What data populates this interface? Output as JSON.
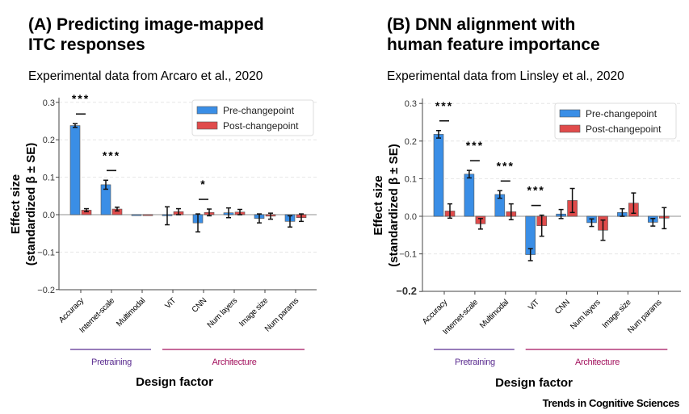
{
  "footer": "Trends in Cognitive Sciences",
  "colors": {
    "pre": "#3a8ee6",
    "post": "#e04b4b",
    "pretraining_group": "#5b2d90",
    "architecture_group": "#a3125e"
  },
  "chart_data": [
    {
      "type": "bar",
      "panel": "A",
      "title": "(A) Predicting image-mapped ITC responses",
      "title_lines": [
        "(A) Predicting image-mapped",
        "ITC responses"
      ],
      "subtitle": "Experimental data from Arcaro et al., 2020",
      "xlabel": "Design factor",
      "ylabel": "Effect size",
      "ylabel2": "(standardized β ± SE)",
      "ylim": [
        -0.2,
        0.3
      ],
      "yticks": [
        -0.2,
        -0.1,
        0.0,
        0.1,
        0.2,
        0.3
      ],
      "ytick_labels": [
        "−0.2",
        "−0.1",
        "0.0",
        "0.1",
        "0.2",
        "0.3"
      ],
      "grid": true,
      "legend_position": "top-right",
      "categories": [
        "Accuracy",
        "Internet-scale",
        "Multimodal",
        "ViT",
        "CNN",
        "Num layers",
        "Image size",
        "Num params"
      ],
      "groups": [
        {
          "label": "Pretraining",
          "start": 0,
          "end": 2
        },
        {
          "label": "Architecture",
          "start": 3,
          "end": 7
        }
      ],
      "series": [
        {
          "name": "Pre-changepoint",
          "values": [
            0.238,
            0.08,
            0.0,
            -0.003,
            -0.022,
            0.005,
            -0.01,
            -0.018
          ],
          "errors": [
            0.005,
            0.012,
            0.0,
            0.024,
            0.024,
            0.013,
            0.012,
            0.015
          ]
        },
        {
          "name": "Post-changepoint",
          "values": [
            0.012,
            0.015,
            0.0,
            0.008,
            0.006,
            0.007,
            -0.004,
            -0.008
          ],
          "errors": [
            0.004,
            0.005,
            0.0,
            0.008,
            0.009,
            0.007,
            0.008,
            0.01
          ]
        }
      ],
      "significance": [
        {
          "category": 0,
          "label": "***"
        },
        {
          "category": 1,
          "label": "***"
        },
        {
          "category": 4,
          "label": "*"
        }
      ]
    },
    {
      "type": "bar",
      "panel": "B",
      "title": "(B) DNN alignment with human feature importance",
      "title_lines": [
        "(B) DNN alignment with",
        "human feature importance"
      ],
      "subtitle": "Experimental data from Linsley et al., 2020",
      "xlabel": "Design factor",
      "ylabel": "Effect size",
      "ylabel2": "(standardized β ± SE)",
      "ylim": [
        -0.2,
        0.3
      ],
      "yticks": [
        -0.2,
        -0.1,
        0.0,
        0.1,
        0.2,
        0.3
      ],
      "ytick_labels": [
        "−0.2",
        "−0.1",
        "0.0",
        "0.1",
        "0.2",
        "0.3"
      ],
      "grid": true,
      "legend_position": "top-right",
      "categories": [
        "Accuracy",
        "Internet-scale",
        "Multimodal",
        "ViT",
        "CNN",
        "Num layers",
        "Image size",
        "Num params"
      ],
      "groups": [
        {
          "label": "Pretraining",
          "start": 0,
          "end": 2
        },
        {
          "label": "Architecture",
          "start": 3,
          "end": 7
        }
      ],
      "series": [
        {
          "name": "Pre-changepoint",
          "values": [
            0.218,
            0.112,
            0.058,
            -0.102,
            0.006,
            -0.017,
            0.01,
            -0.016
          ],
          "errors": [
            0.01,
            0.01,
            0.01,
            0.016,
            0.012,
            0.01,
            0.01,
            0.01
          ]
        },
        {
          "name": "Post-changepoint",
          "values": [
            0.014,
            -0.02,
            0.012,
            -0.025,
            0.042,
            -0.037,
            0.035,
            -0.005
          ],
          "errors": [
            0.019,
            0.014,
            0.021,
            0.028,
            0.032,
            0.027,
            0.027,
            0.028
          ]
        }
      ],
      "significance": [
        {
          "category": 0,
          "label": "***"
        },
        {
          "category": 1,
          "label": "***"
        },
        {
          "category": 2,
          "label": "***"
        },
        {
          "category": 3,
          "label": "***"
        }
      ]
    }
  ]
}
